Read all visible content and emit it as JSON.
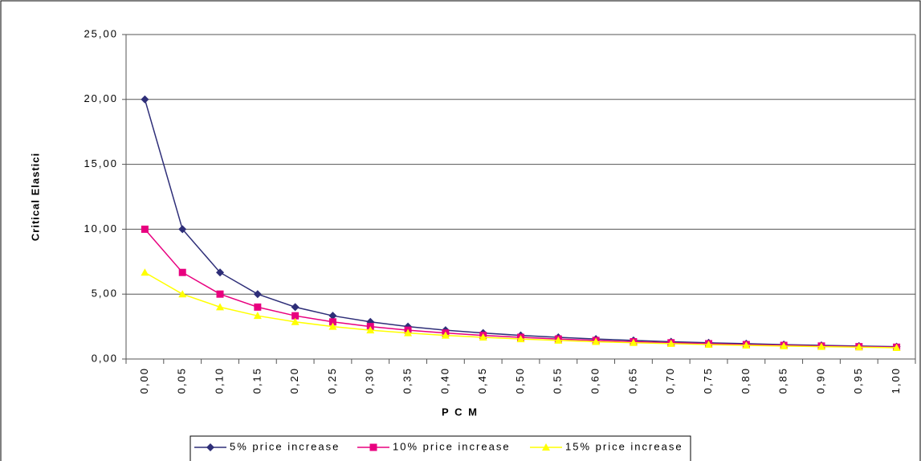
{
  "chart_data": {
    "type": "line",
    "y_label": "Critical Elastici",
    "x_label": "P C M",
    "categories": [
      "0,00",
      "0,05",
      "0,10",
      "0,15",
      "0,20",
      "0,25",
      "0,30",
      "0,35",
      "0,40",
      "0,45",
      "0,50",
      "0,55",
      "0,60",
      "0,65",
      "0,70",
      "0,75",
      "0,80",
      "0,85",
      "0,90",
      "0,95",
      "1,00"
    ],
    "series": [
      {
        "name": "5% price increase",
        "color": "#2e2e78",
        "values": [
          20,
          10,
          6.67,
          5,
          4,
          3.33,
          2.86,
          2.5,
          2.22,
          2,
          1.82,
          1.67,
          1.54,
          1.43,
          1.33,
          1.25,
          1.18,
          1.11,
          1.05,
          1,
          0.95
        ]
      },
      {
        "name": "10% price increase",
        "color": "#e8007f",
        "values": [
          10,
          6.67,
          5,
          4,
          3.33,
          2.86,
          2.5,
          2.22,
          2,
          1.82,
          1.67,
          1.54,
          1.43,
          1.33,
          1.25,
          1.18,
          1.11,
          1.05,
          1,
          0.95,
          0.91
        ]
      },
      {
        "name": "15% price increase",
        "color": "#ffff00",
        "values": [
          6.67,
          5,
          4,
          3.33,
          2.86,
          2.5,
          2.22,
          2,
          1.82,
          1.67,
          1.54,
          1.43,
          1.33,
          1.25,
          1.18,
          1.11,
          1.05,
          1,
          0.95,
          0.91,
          0.87
        ]
      }
    ],
    "ylim": [
      0,
      25
    ],
    "yticks": [
      {
        "value": 0,
        "label": "0,00"
      },
      {
        "value": 5,
        "label": "5,00"
      },
      {
        "value": 10,
        "label": "10,00"
      },
      {
        "value": 15,
        "label": "15,00"
      },
      {
        "value": 20,
        "label": "20,00"
      },
      {
        "value": 25,
        "label": "25,00"
      }
    ],
    "grid": true,
    "legend": "bottom"
  }
}
